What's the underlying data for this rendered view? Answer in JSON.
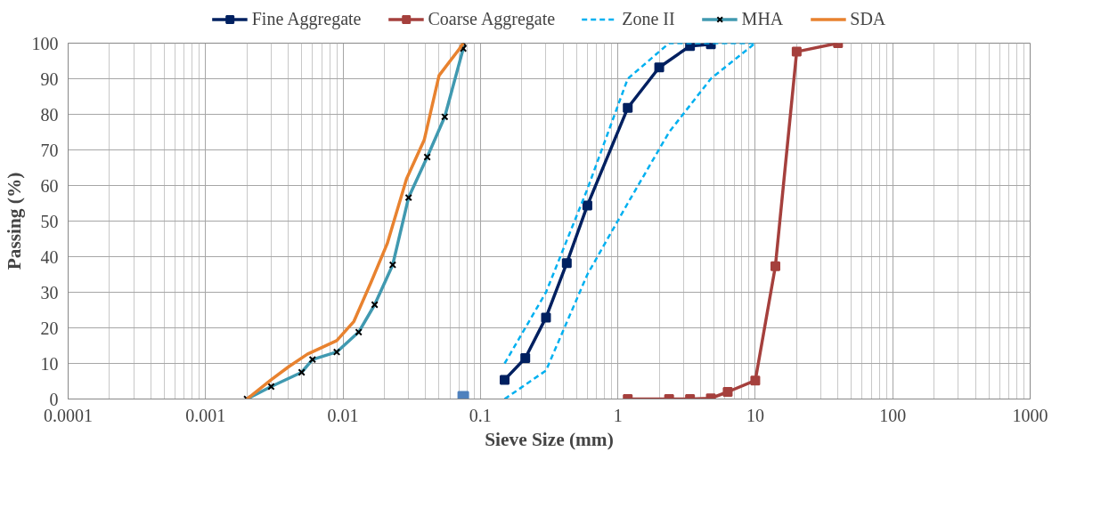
{
  "chart_data": {
    "type": "line",
    "xlabel": "Sieve Size (mm)",
    "ylabel": "Passing (%)",
    "log": "x",
    "xlim": [
      0.0001,
      1000
    ],
    "xticks": [
      0.0001,
      0.001,
      0.01,
      0.1,
      1,
      10,
      100,
      1000
    ],
    "ylim": [
      0,
      100
    ],
    "yticks": [
      0,
      10,
      20,
      30,
      40,
      50,
      60,
      70,
      80,
      90,
      100
    ],
    "grid": true,
    "legend": "top",
    "series": [
      {
        "name": "Fine Aggregate",
        "color": "#002060",
        "marker": "square",
        "x": [
          0.15,
          0.212,
          0.3,
          0.425,
          0.6,
          1.18,
          2,
          3.35,
          4.75
        ],
        "values": [
          5.4,
          11.5,
          22.9,
          38.2,
          54.4,
          81.8,
          93.2,
          99.2,
          99.7
        ]
      },
      {
        "name": "Coarse Aggregate",
        "color": "#a5403d",
        "marker": "square",
        "x": [
          1.18,
          2.36,
          3.35,
          4.75,
          6.3,
          10,
          14,
          20,
          40
        ],
        "values": [
          0,
          0,
          0,
          0.2,
          2,
          5.2,
          37.3,
          97.6,
          100
        ]
      },
      {
        "name": "Zone II",
        "color": "#00b0f0",
        "marker": "none",
        "line_style": "dashed",
        "x": [
          0.15,
          0.3,
          0.6,
          1.18,
          2.36,
          4.75,
          10
        ],
        "values": [
          10,
          30,
          59,
          90,
          100,
          100,
          100
        ]
      },
      {
        "color": "#00b0f0",
        "marker": "none",
        "line_style": "dashed",
        "x": [
          0.15,
          0.3,
          0.6,
          1.18,
          2.36,
          4.75,
          10
        ],
        "values": [
          0,
          8,
          35,
          55,
          75,
          90,
          100
        ]
      },
      {
        "name": "MHA",
        "color": "#4099b0",
        "marker": "cross",
        "x": [
          0.002,
          0.003,
          0.005,
          0.006,
          0.009,
          0.013,
          0.017,
          0.023,
          0.03,
          0.041,
          0.055,
          0.075,
          0.075
        ],
        "values": [
          0,
          3.5,
          7.5,
          11.1,
          13.2,
          18.8,
          26.5,
          37.7,
          56.6,
          68,
          79.3,
          98.5,
          100
        ]
      },
      {
        "name": "SDA",
        "color": "#e8822f",
        "marker": "none",
        "x": [
          0.002,
          0.003,
          0.004,
          0.0055,
          0.009,
          0.012,
          0.016,
          0.021,
          0.029,
          0.039,
          0.05,
          0.07,
          0.075
        ],
        "values": [
          0,
          5.4,
          9,
          12.6,
          16.4,
          21.8,
          32.8,
          43.7,
          61.9,
          72.8,
          90.9,
          98.3,
          100
        ]
      },
      {
        "type": "scatter",
        "color": "#4f81bd",
        "marker": "square",
        "x": [
          0.075
        ],
        "values": [
          0.6
        ]
      }
    ]
  }
}
